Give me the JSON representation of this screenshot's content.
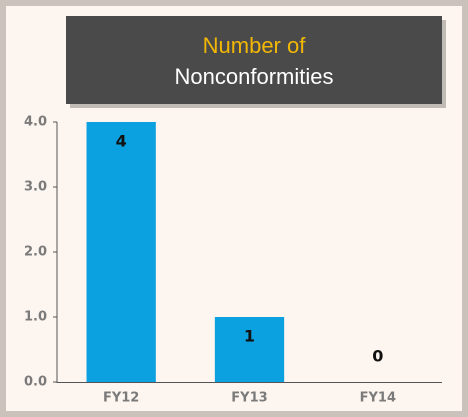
{
  "chart_data": {
    "type": "bar",
    "title": "Number of",
    "subtitle": "Nonconformities",
    "categories": [
      "FY12",
      "FY13",
      "FY14"
    ],
    "values": [
      4,
      1,
      0
    ],
    "color": "#0ba0e0",
    "ylim": [
      0,
      4
    ],
    "yticks": [
      {
        "value": 0,
        "label": "0.0"
      },
      {
        "value": 1,
        "label": "1.0"
      },
      {
        "value": 2,
        "label": "2.0"
      },
      {
        "value": 3,
        "label": "3.0"
      },
      {
        "value": 4,
        "label": "4.0"
      }
    ],
    "grid": false
  }
}
